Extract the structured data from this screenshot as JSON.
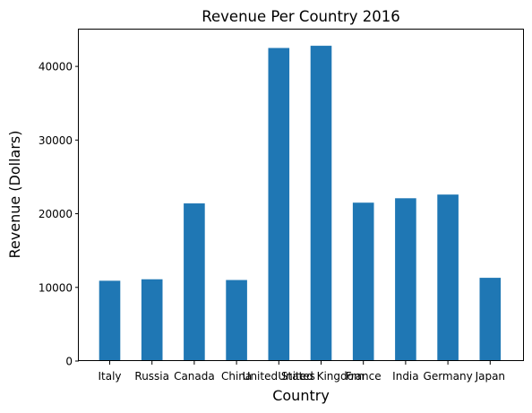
{
  "chart_data": {
    "type": "bar",
    "title": "Revenue Per Country 2016",
    "xlabel": "Country",
    "ylabel": "Revenue (Dollars)",
    "categories": [
      "Italy",
      "Russia",
      "Canada",
      "China",
      "United States",
      "United Kingdom",
      "France",
      "India",
      "Germany",
      "Japan"
    ],
    "values": [
      10900,
      11100,
      21400,
      11000,
      42500,
      42800,
      21500,
      22100,
      22600,
      11300
    ],
    "ylim": [
      0,
      45000
    ],
    "yticks": [
      0,
      10000,
      20000,
      30000,
      40000
    ],
    "grid": false,
    "bar_color": "#1f77b4"
  }
}
